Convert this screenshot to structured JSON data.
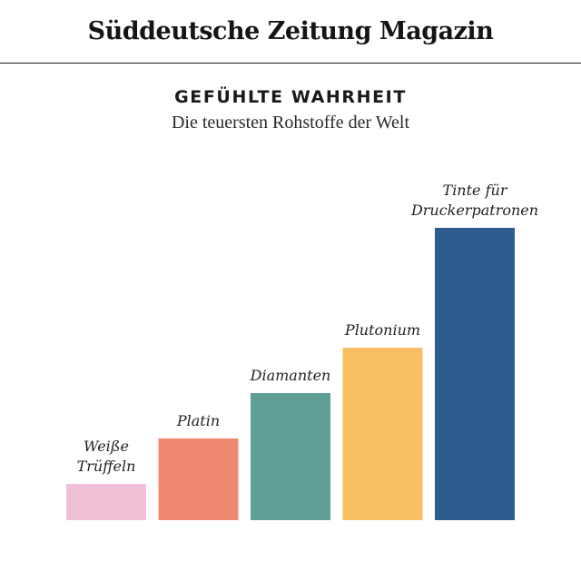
{
  "masthead": {
    "title": "Süddeutsche Zeitung Magazin"
  },
  "chart_data": {
    "type": "bar",
    "title": "GEFÜHLTE WAHRHEIT",
    "subtitle": "Die teuersten Rohstoffe der Welt",
    "categories": [
      [
        "Weiße",
        "Trüffeln"
      ],
      [
        "Platin"
      ],
      [
        "Diamanten"
      ],
      [
        "Plutonium"
      ],
      [
        "Tinte für",
        "Druckerpatronen"
      ]
    ],
    "values": [
      40,
      90,
      140,
      190,
      322
    ],
    "colors": [
      "#f0c0d6",
      "#ef8a70",
      "#5f9f96",
      "#f8c062",
      "#2f5c8f"
    ],
    "axes_visible": false,
    "grid": false,
    "legend": "none"
  }
}
